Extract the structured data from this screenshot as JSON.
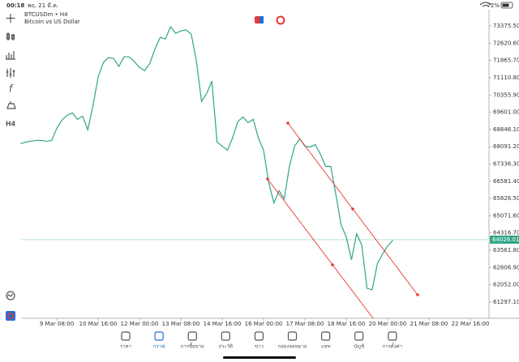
{
  "status_bar": {
    "time": "00:18",
    "date": "พฤ. 21 มี.ค.",
    "battery": "72%"
  },
  "symbol": {
    "title": "BTCUSDm • H4",
    "description": "Bitcoin vs US Dollar"
  },
  "toolbar": {
    "timeframe": "H4"
  },
  "chart_data": {
    "type": "line",
    "color": "#2fa586",
    "categories": [
      null,
      null,
      null,
      null,
      null,
      null,
      null,
      "9 Mar 08:00",
      null,
      null,
      null,
      null,
      null,
      null,
      null,
      "10 Mar 16:00",
      null,
      null,
      null,
      null,
      null,
      null,
      null,
      "12 Mar 00:00",
      null,
      null,
      null,
      null,
      null,
      null,
      null,
      "13 Mar 08:00",
      null,
      null,
      null,
      null,
      null,
      null,
      null,
      "14 Mar 16:00",
      null,
      null,
      null,
      null,
      null,
      null,
      null,
      "16 Mar 00:00",
      null,
      null,
      null,
      null,
      null,
      null,
      null,
      "17 Mar 08:00",
      null,
      null,
      null,
      null,
      null,
      null,
      null,
      "18 Mar 16:00",
      null,
      null,
      null,
      null,
      null,
      null,
      null,
      "20 Mar 00:00",
      null,
      null,
      null,
      null,
      null,
      null,
      null,
      "21 Mar 08:00",
      null,
      null,
      null,
      null,
      null,
      null,
      null,
      "22 Mar 16:00",
      null,
      null,
      null
    ],
    "values": [
      68224,
      68295,
      68331,
      68366,
      68366,
      68331,
      68366,
      68899,
      69255,
      69468,
      69574,
      69290,
      69432,
      68828,
      69894,
      71137,
      71777,
      71990,
      71954,
      71599,
      72025,
      72025,
      71812,
      71564,
      71421,
      71741,
      72381,
      72878,
      72807,
      73340,
      73056,
      73162,
      73198,
      73020,
      71848,
      70072,
      70427,
      70960,
      68295,
      68118,
      67940,
      68473,
      69184,
      69397,
      69148,
      69290,
      68473,
      67940,
      66519,
      65631,
      66164,
      65809,
      67230,
      68118,
      68438,
      68118,
      68082,
      68189,
      67763,
      67230,
      67230,
      65986,
      64672,
      64139,
      63144,
      64281,
      63784,
      61901,
      61830,
      62967,
      63393,
      63748,
      63997,
      null,
      null,
      null,
      null,
      null,
      null,
      null,
      null,
      null,
      null,
      null,
      null,
      null,
      null,
      null,
      null,
      null,
      null
    ],
    "ylim": [
      60586,
      74086
    ],
    "yticks": [
      {
        "value": 73375.5,
        "label": "73375.50"
      },
      {
        "value": 72620.6,
        "label": "72620.60"
      },
      {
        "value": 71865.7,
        "label": "71865.70"
      },
      {
        "value": 71110.8,
        "label": "71110.80"
      },
      {
        "value": 70355.9,
        "label": "70355.90"
      },
      {
        "value": 69601,
        "label": "69601.00"
      },
      {
        "value": 68846.1,
        "label": "68846.10"
      },
      {
        "value": 68091.2,
        "label": "68091.20"
      },
      {
        "value": 67336.3,
        "label": "67336.30"
      },
      {
        "value": 66581.4,
        "label": "66581.40"
      },
      {
        "value": 65826.5,
        "label": "65826.50"
      },
      {
        "value": 65071.6,
        "label": "65071.60"
      },
      {
        "value": 64316.7,
        "label": "64316.70"
      },
      {
        "value": 63561.8,
        "label": "63561.80"
      },
      {
        "value": 62806.9,
        "label": "62806.90"
      },
      {
        "value": 62052,
        "label": "62052.00"
      },
      {
        "value": 61297.1,
        "label": "61297.10"
      }
    ],
    "current_price": 64026.01,
    "current_price_color": "#2fa586"
  },
  "bottom_nav": [
    "ราคา",
    "กราฟ",
    "การซื้อขาย",
    "ประวัติ",
    "ข่าว",
    "กล่องจดหมาย",
    "แชท",
    "บัญชี",
    "การตั้งค่า"
  ]
}
